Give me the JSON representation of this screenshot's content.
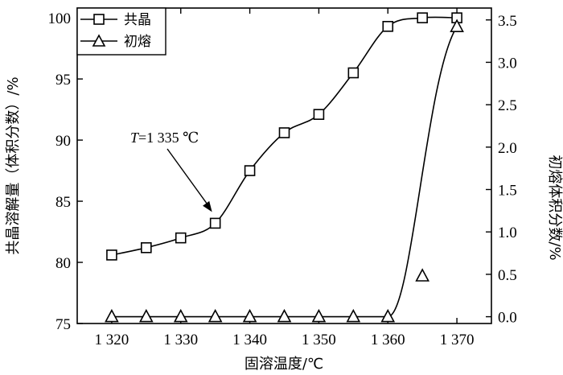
{
  "chart_data": {
    "type": "line",
    "xlabel": "固溶温度/℃",
    "ylabel": "共晶溶解量（体积分数）/%",
    "y2label": "初熔体积分数/%",
    "xlim": [
      1315,
      1375
    ],
    "ylim": [
      75,
      100.8
    ],
    "y2lim": [
      -0.08,
      3.64
    ],
    "xticks": [
      1320,
      1330,
      1340,
      1350,
      1360,
      1370
    ],
    "xtick_labels": [
      "1 320",
      "1 330",
      "1 340",
      "1 350",
      "1 360",
      "1 370"
    ],
    "yticks": [
      75,
      80,
      85,
      90,
      95,
      100
    ],
    "ytick_labels": [
      "75",
      "80",
      "85",
      "90",
      "95",
      "100"
    ],
    "y2ticks": [
      0,
      0.5,
      1.0,
      1.5,
      2.0,
      2.5,
      3.0,
      3.5
    ],
    "y2tick_labels": [
      "0.0",
      "0.5",
      "1.0",
      "1.5",
      "2.0",
      "2.5",
      "3.0",
      "3.5"
    ],
    "legend_position": "top-left",
    "series": [
      {
        "name": "共晶",
        "marker": "square",
        "axis": "left",
        "x": [
          1320,
          1325,
          1330,
          1335,
          1340,
          1345,
          1350,
          1355,
          1360,
          1365,
          1370
        ],
        "y": [
          80.6,
          81.2,
          82.0,
          83.2,
          87.5,
          90.6,
          92.1,
          95.5,
          99.3,
          100.0,
          100.0
        ]
      },
      {
        "name": "初熔",
        "marker": "triangle",
        "axis": "right",
        "x": [
          1320,
          1325,
          1330,
          1335,
          1340,
          1345,
          1350,
          1355,
          1360,
          1365,
          1370
        ],
        "y": [
          0.0,
          0.0,
          0.0,
          0.0,
          0.0,
          0.0,
          0.0,
          0.0,
          0.0,
          0.48,
          3.42
        ]
      }
    ],
    "annotation": {
      "var": "T",
      "text": "=1 335 ℃",
      "x": 1335,
      "y": 83.2
    }
  }
}
